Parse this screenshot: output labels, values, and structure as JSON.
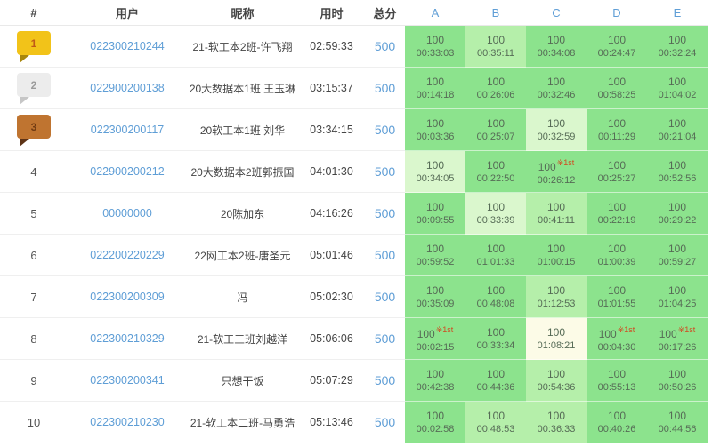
{
  "colors": {
    "link_blue": "#5f9ed6",
    "cell_text": "#566b56",
    "first_marker": "#d14a21",
    "header_text": "#454545",
    "cell_shades": {
      "green": "#8ce38d",
      "medium": "#b5efaa",
      "pale": "#daf7cd",
      "cream": "#fcfbe7"
    },
    "badges": {
      "gold": {
        "bg": "#f2c319",
        "fold": "#a8860b",
        "num": "#c05a17"
      },
      "silver": {
        "bg": "#ececec",
        "fold": "#c6c6c6",
        "num": "#9b9b9b"
      },
      "bronze": {
        "bg": "#bf7430",
        "fold": "#5e3316",
        "num": "#703a12"
      }
    }
  },
  "table": {
    "headers": [
      "#",
      "用户",
      "昵称",
      "用时",
      "总分",
      "A",
      "B",
      "C",
      "D",
      "E"
    ],
    "first_marker": "※1st",
    "rows": [
      {
        "rank": "1",
        "rank_style": "gold",
        "user": "022300210244",
        "nick": "21-软工本2班-许飞翔",
        "time": "02:59:33",
        "score": "500",
        "cells": [
          {
            "score": "100",
            "time": "00:33:03",
            "shade": "green",
            "first": false
          },
          {
            "score": "100",
            "time": "00:35:11",
            "shade": "medium",
            "first": false
          },
          {
            "score": "100",
            "time": "00:34:08",
            "shade": "green",
            "first": false
          },
          {
            "score": "100",
            "time": "00:24:47",
            "shade": "green",
            "first": false
          },
          {
            "score": "100",
            "time": "00:32:24",
            "shade": "green",
            "first": false
          }
        ]
      },
      {
        "rank": "2",
        "rank_style": "silver",
        "user": "022900200138",
        "nick": "20大数据本1班 王玉琳",
        "time": "03:15:37",
        "score": "500",
        "cells": [
          {
            "score": "100",
            "time": "00:14:18",
            "shade": "green",
            "first": false
          },
          {
            "score": "100",
            "time": "00:26:06",
            "shade": "green",
            "first": false
          },
          {
            "score": "100",
            "time": "00:32:46",
            "shade": "green",
            "first": false
          },
          {
            "score": "100",
            "time": "00:58:25",
            "shade": "green",
            "first": false
          },
          {
            "score": "100",
            "time": "01:04:02",
            "shade": "green",
            "first": false
          }
        ]
      },
      {
        "rank": "3",
        "rank_style": "bronze",
        "user": "022300200117",
        "nick": "20软工本1班 刘华",
        "time": "03:34:15",
        "score": "500",
        "cells": [
          {
            "score": "100",
            "time": "00:03:36",
            "shade": "green",
            "first": false
          },
          {
            "score": "100",
            "time": "00:25:07",
            "shade": "green",
            "first": false
          },
          {
            "score": "100",
            "time": "00:32:59",
            "shade": "pale",
            "first": false
          },
          {
            "score": "100",
            "time": "00:11:29",
            "shade": "green",
            "first": false
          },
          {
            "score": "100",
            "time": "00:21:04",
            "shade": "green",
            "first": false
          }
        ]
      },
      {
        "rank": "4",
        "rank_style": "plain",
        "user": "022900200212",
        "nick": "20大数据本2班郭振国",
        "time": "04:01:30",
        "score": "500",
        "cells": [
          {
            "score": "100",
            "time": "00:34:05",
            "shade": "pale",
            "first": false
          },
          {
            "score": "100",
            "time": "00:22:50",
            "shade": "green",
            "first": false
          },
          {
            "score": "100",
            "time": "00:26:12",
            "shade": "green",
            "first": true
          },
          {
            "score": "100",
            "time": "00:25:27",
            "shade": "green",
            "first": false
          },
          {
            "score": "100",
            "time": "00:52:56",
            "shade": "green",
            "first": false
          }
        ]
      },
      {
        "rank": "5",
        "rank_style": "plain",
        "user": "00000000",
        "nick": "20陈加东",
        "time": "04:16:26",
        "score": "500",
        "cells": [
          {
            "score": "100",
            "time": "00:09:55",
            "shade": "green",
            "first": false
          },
          {
            "score": "100",
            "time": "00:33:39",
            "shade": "pale",
            "first": false
          },
          {
            "score": "100",
            "time": "00:41:11",
            "shade": "medium",
            "first": false
          },
          {
            "score": "100",
            "time": "00:22:19",
            "shade": "green",
            "first": false
          },
          {
            "score": "100",
            "time": "00:29:22",
            "shade": "green",
            "first": false
          }
        ]
      },
      {
        "rank": "6",
        "rank_style": "plain",
        "user": "022200220229",
        "nick": "22网工本2班-唐圣元",
        "time": "05:01:46",
        "score": "500",
        "cells": [
          {
            "score": "100",
            "time": "00:59:52",
            "shade": "green",
            "first": false
          },
          {
            "score": "100",
            "time": "01:01:33",
            "shade": "green",
            "first": false
          },
          {
            "score": "100",
            "time": "01:00:15",
            "shade": "green",
            "first": false
          },
          {
            "score": "100",
            "time": "01:00:39",
            "shade": "green",
            "first": false
          },
          {
            "score": "100",
            "time": "00:59:27",
            "shade": "green",
            "first": false
          }
        ]
      },
      {
        "rank": "7",
        "rank_style": "plain",
        "user": "022300200309",
        "nick": "冯",
        "time": "05:02:30",
        "score": "500",
        "cells": [
          {
            "score": "100",
            "time": "00:35:09",
            "shade": "green",
            "first": false
          },
          {
            "score": "100",
            "time": "00:48:08",
            "shade": "green",
            "first": false
          },
          {
            "score": "100",
            "time": "01:12:53",
            "shade": "medium",
            "first": false
          },
          {
            "score": "100",
            "time": "01:01:55",
            "shade": "green",
            "first": false
          },
          {
            "score": "100",
            "time": "01:04:25",
            "shade": "green",
            "first": false
          }
        ]
      },
      {
        "rank": "8",
        "rank_style": "plain",
        "user": "022300210329",
        "nick": "21-软工三班刘越洋",
        "time": "05:06:06",
        "score": "500",
        "cells": [
          {
            "score": "100",
            "time": "00:02:15",
            "shade": "green",
            "first": true
          },
          {
            "score": "100",
            "time": "00:33:34",
            "shade": "green",
            "first": false
          },
          {
            "score": "100",
            "time": "01:08:21",
            "shade": "cream",
            "first": false
          },
          {
            "score": "100",
            "time": "00:04:30",
            "shade": "green",
            "first": true
          },
          {
            "score": "100",
            "time": "00:17:26",
            "shade": "green",
            "first": true
          }
        ]
      },
      {
        "rank": "9",
        "rank_style": "plain",
        "user": "022300200341",
        "nick": "只想干饭",
        "time": "05:07:29",
        "score": "500",
        "cells": [
          {
            "score": "100",
            "time": "00:42:38",
            "shade": "green",
            "first": false
          },
          {
            "score": "100",
            "time": "00:44:36",
            "shade": "green",
            "first": false
          },
          {
            "score": "100",
            "time": "00:54:36",
            "shade": "medium",
            "first": false
          },
          {
            "score": "100",
            "time": "00:55:13",
            "shade": "green",
            "first": false
          },
          {
            "score": "100",
            "time": "00:50:26",
            "shade": "green",
            "first": false
          }
        ]
      },
      {
        "rank": "10",
        "rank_style": "plain",
        "user": "022300210230",
        "nick": "21-软工本二班-马勇浩",
        "time": "05:13:46",
        "score": "500",
        "cells": [
          {
            "score": "100",
            "time": "00:02:58",
            "shade": "green",
            "first": false
          },
          {
            "score": "100",
            "time": "00:48:53",
            "shade": "medium",
            "first": false
          },
          {
            "score": "100",
            "time": "00:36:33",
            "shade": "medium",
            "first": false
          },
          {
            "score": "100",
            "time": "00:40:26",
            "shade": "green",
            "first": false
          },
          {
            "score": "100",
            "time": "00:44:56",
            "shade": "green",
            "first": false
          }
        ]
      }
    ]
  }
}
